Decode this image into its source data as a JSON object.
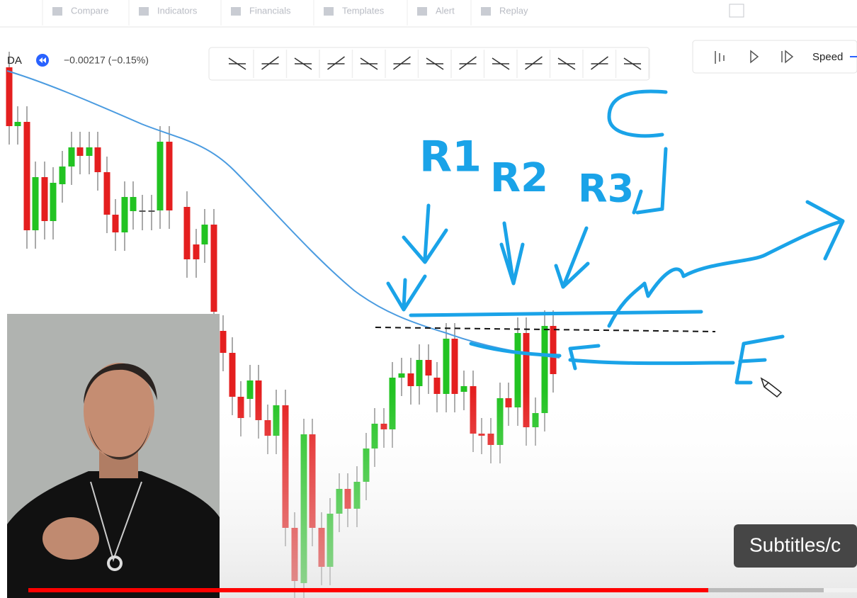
{
  "toolbar": {
    "items": [
      "Compare",
      "Indicators",
      "Financials",
      "Templates",
      "Alert",
      "Replay"
    ]
  },
  "symbol": "DA",
  "change": "−0.00217 (−0.15%)",
  "replay": {
    "speed_label": "Speed"
  },
  "annotations": [
    "R1",
    "R2",
    "R3",
    "C",
    "E"
  ],
  "subtitles": "Subtitles/c"
}
